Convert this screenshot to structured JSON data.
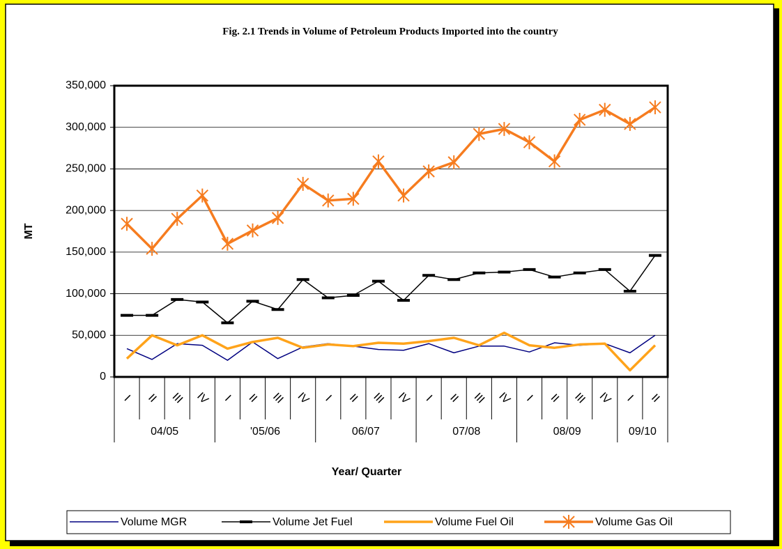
{
  "chart_data": {
    "type": "line",
    "title": "Fig. 2.1 Trends in Volume of Petroleum Products Imported into the country",
    "y_label": "MT",
    "x_label": "Year/ Quarter",
    "categories": [
      "I",
      "II",
      "III",
      "IV",
      "I",
      "II",
      "III",
      "IV",
      "I",
      "II",
      "III",
      "IV",
      "I",
      "II",
      "III",
      "IV",
      "I",
      "II",
      "III",
      "IV",
      "I",
      "II"
    ],
    "groups": [
      {
        "label": "04/05",
        "span": 4
      },
      {
        "label": "'05/06",
        "span": 4
      },
      {
        "label": "06/07",
        "span": 4
      },
      {
        "label": "07/08",
        "span": 4
      },
      {
        "label": "08/09",
        "span": 4
      },
      {
        "label": "09/10",
        "span": 2
      }
    ],
    "ylim": [
      0,
      350000
    ],
    "yticks": [
      0,
      {
        "value": 50000,
        "label": "50,000"
      },
      {
        "value": 100000,
        "label": "100,000"
      },
      {
        "value": 150000,
        "label": "150,000"
      },
      {
        "value": 200000,
        "label": "200,000"
      },
      {
        "value": 250000,
        "label": "250,000"
      },
      {
        "value": 300000,
        "label": "300,000"
      },
      {
        "value": 350000,
        "label": "350,000"
      }
    ],
    "grid": true,
    "legend": "bottom",
    "series": [
      {
        "name": "Volume MGR",
        "color": "#000080",
        "marker": "none",
        "width": 1.5,
        "values": [
          34000,
          21000,
          40000,
          38000,
          20000,
          42000,
          22000,
          36000,
          40000,
          37000,
          33000,
          32000,
          40000,
          29000,
          37000,
          37000,
          30000,
          41000,
          38000,
          40000,
          29000,
          50000
        ]
      },
      {
        "name": "Volume Jet Fuel",
        "color": "#000000",
        "marker": "dash",
        "width": 1.5,
        "values": [
          74000,
          74000,
          93000,
          90000,
          65000,
          91000,
          81000,
          117000,
          95000,
          98000,
          115000,
          92000,
          122000,
          117000,
          125000,
          126000,
          129000,
          120000,
          125000,
          129000,
          103000,
          146000
        ]
      },
      {
        "name": "Volume Fuel Oil",
        "color": "#ffa31a",
        "marker": "none",
        "width": 3.5,
        "values": [
          22000,
          50000,
          38000,
          50000,
          34000,
          42000,
          47000,
          35000,
          39000,
          37000,
          41000,
          40000,
          43000,
          47000,
          38000,
          53000,
          38000,
          35000,
          39000,
          40000,
          8000,
          38000
        ]
      },
      {
        "name": "Volume Gas Oil",
        "color": "#f67c1f",
        "marker": "asterisk",
        "width": 3.5,
        "values": [
          184000,
          154000,
          190000,
          218000,
          160000,
          176000,
          191000,
          232000,
          212000,
          214000,
          259000,
          218000,
          247000,
          258000,
          292000,
          298000,
          282000,
          259000,
          309000,
          321000,
          304000,
          324000
        ]
      }
    ]
  }
}
